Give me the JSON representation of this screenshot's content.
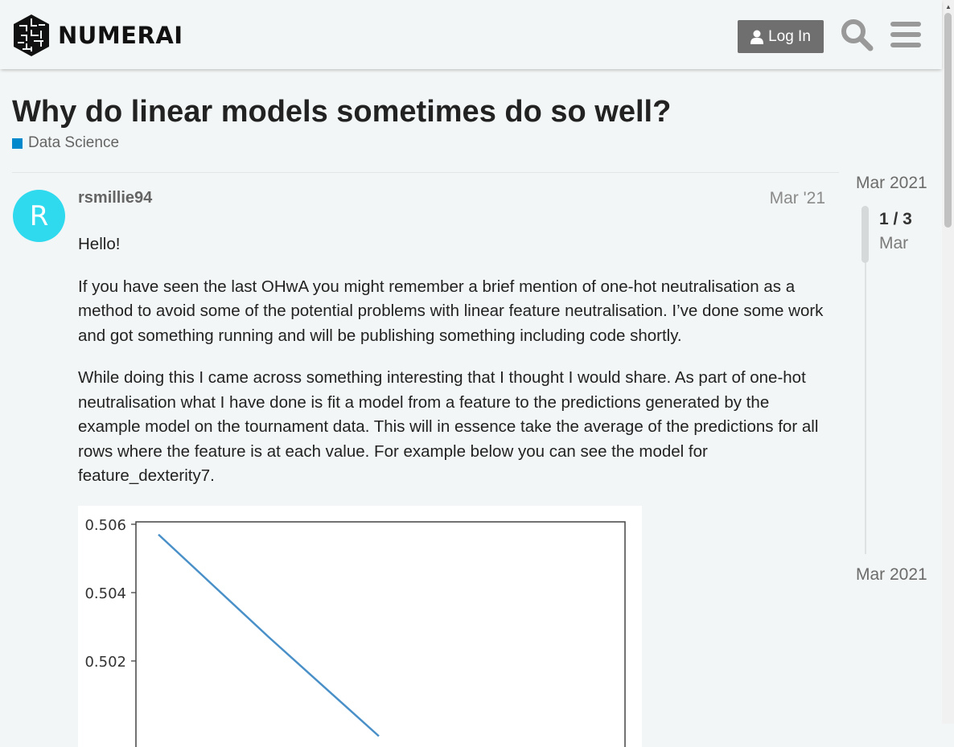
{
  "header": {
    "logo_text": "NUMERAI",
    "login_label": "Log In",
    "icons": [
      "numerai-logo-icon",
      "user-icon",
      "search-icon",
      "hamburger-menu-icon"
    ]
  },
  "topic": {
    "title": "Why do linear models sometimes do so well?",
    "category": "Data Science"
  },
  "post": {
    "avatar_letter": "R",
    "username": "rsmillie94",
    "date": "Mar '21",
    "paragraphs": [
      "Hello!",
      "If you have seen the last OHwA you might remember a brief mention of one-hot neutralisation as a method to avoid some of the potential problems with linear feature neutralisation. I’ve done some work and got something running and will be publishing something including code shortly.",
      "While doing this I came across something interesting that I thought I would share. As part of one-hot neutralisation what I have done is fit a model from a feature to the predictions generated by the example model on the tournament data. This will in essence take the average of the predictions for all rows where the feature is at each value. For example below you can see the model for feature_dexterity7."
    ]
  },
  "timeline": {
    "top_date": "Mar 2021",
    "count": "1 / 3",
    "month": "Mar",
    "bottom_date": "Mar 2021"
  },
  "colors": {
    "category": "#0088cc",
    "avatar": "#2fd9ee",
    "button": "#6f6f6f",
    "line": "#4a90c8"
  },
  "chart_data": {
    "type": "line",
    "title": "",
    "xlabel": "",
    "ylabel": "",
    "y_ticks": [
      "0.506",
      "0.504",
      "0.502"
    ],
    "x": [
      0,
      0.25,
      0.5
    ],
    "values": [
      0.5057,
      0.5027,
      0.4998
    ],
    "ylim": [
      0.4995,
      0.5062
    ],
    "grid": false
  }
}
